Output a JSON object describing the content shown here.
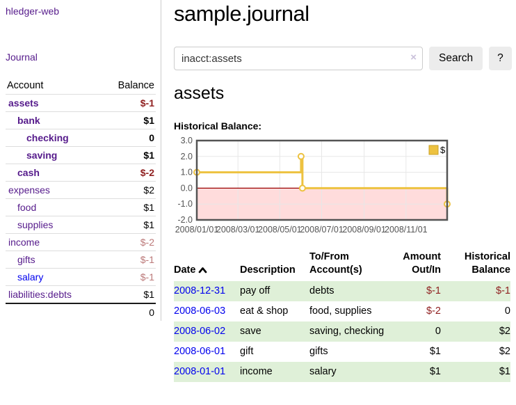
{
  "sidebar": {
    "brand": "hledger-web",
    "journal_link": "Journal",
    "accounts": {
      "headers": {
        "account": "Account",
        "balance": "Balance"
      },
      "rows": [
        {
          "name": "assets",
          "depth": 0,
          "bold": true,
          "balance": "$-1",
          "value_tone": "negative-strong",
          "link_tone": "visited"
        },
        {
          "name": "bank",
          "depth": 1,
          "bold": true,
          "balance": "$1",
          "value_tone": "normal",
          "link_tone": "visited"
        },
        {
          "name": "checking",
          "depth": 2,
          "bold": true,
          "balance": "0",
          "value_tone": "normal",
          "link_tone": "visited"
        },
        {
          "name": "saving",
          "depth": 2,
          "bold": true,
          "balance": "$1",
          "value_tone": "normal",
          "link_tone": "visited"
        },
        {
          "name": "cash",
          "depth": 1,
          "bold": true,
          "balance": "$-2",
          "value_tone": "negative-strong",
          "link_tone": "visited"
        },
        {
          "name": "expenses",
          "depth": 0,
          "bold": false,
          "balance": "$2",
          "value_tone": "normal",
          "link_tone": "visited"
        },
        {
          "name": "food",
          "depth": 1,
          "bold": false,
          "balance": "$1",
          "value_tone": "normal",
          "link_tone": "visited"
        },
        {
          "name": "supplies",
          "depth": 1,
          "bold": false,
          "balance": "$1",
          "value_tone": "normal",
          "link_tone": "visited"
        },
        {
          "name": "income",
          "depth": 0,
          "bold": false,
          "balance": "$-2",
          "value_tone": "negative-soft",
          "link_tone": "visited"
        },
        {
          "name": "gifts",
          "depth": 1,
          "bold": false,
          "balance": "$-1",
          "value_tone": "negative-soft",
          "link_tone": "visited"
        },
        {
          "name": "salary",
          "depth": 1,
          "bold": false,
          "balance": "$-1",
          "value_tone": "negative-soft",
          "link_tone": "unvisited"
        },
        {
          "name": "liabilities:debts",
          "depth": 0,
          "bold": false,
          "balance": "$1",
          "value_tone": "normal",
          "link_tone": "visited"
        }
      ],
      "total": "0"
    }
  },
  "main": {
    "title": "sample.journal",
    "search": {
      "value": "inacct:assets",
      "clear_icon": "×",
      "search_button": "Search",
      "help_button": "?"
    },
    "account_heading": "assets",
    "chart_title": "Historical Balance:"
  },
  "chart_data": {
    "type": "line",
    "step": true,
    "title": "Historical Balance",
    "series": [
      {
        "name": "$",
        "color": "#edc240",
        "points": [
          [
            "2008-01-01",
            1
          ],
          [
            "2008-06-01",
            2
          ],
          [
            "2008-06-03",
            0
          ],
          [
            "2008-12-31",
            -1
          ]
        ]
      }
    ],
    "x_range": [
      "2008-01-01",
      "2008-12-31"
    ],
    "x_ticks": [
      "2008/01/01",
      "2008/03/01",
      "2008/05/01",
      "2008/07/01",
      "2008/09/01",
      "2008/11/01"
    ],
    "y_ticks": [
      "3.0",
      "2.0",
      "1.0",
      "0.0",
      "-1.0",
      "-2.0"
    ],
    "ylim": [
      -2,
      3
    ],
    "grid": true,
    "legend_position": "top-right",
    "legend_label": "$",
    "negative_band_color": "#ffdcdc",
    "zero_line_color": "#990000",
    "border_color": "#545454",
    "grid_color": "#e7e7e7",
    "tick_color": "#545454"
  },
  "register": {
    "headers": {
      "date": "Date",
      "description": "Description",
      "accounts": "To/From Account(s)",
      "amount": "Amount Out/In",
      "balance": "Historical Balance"
    },
    "rows": [
      {
        "date": "2008-12-31",
        "description": "pay off",
        "accounts": "debts",
        "amount": "$-1",
        "amount_negative": true,
        "balance": "$-1",
        "balance_negative": true
      },
      {
        "date": "2008-06-03",
        "description": "eat & shop",
        "accounts": "food, supplies",
        "amount": "$-2",
        "amount_negative": true,
        "balance": "0",
        "balance_negative": false
      },
      {
        "date": "2008-06-02",
        "description": "save",
        "accounts": "saving, checking",
        "amount": "0",
        "amount_negative": false,
        "balance": "$2",
        "balance_negative": false
      },
      {
        "date": "2008-06-01",
        "description": "gift",
        "accounts": "gifts",
        "amount": "$1",
        "amount_negative": false,
        "balance": "$2",
        "balance_negative": false
      },
      {
        "date": "2008-01-01",
        "description": "income",
        "accounts": "salary",
        "amount": "$1",
        "amount_negative": false,
        "balance": "$1",
        "balance_negative": false
      }
    ]
  }
}
